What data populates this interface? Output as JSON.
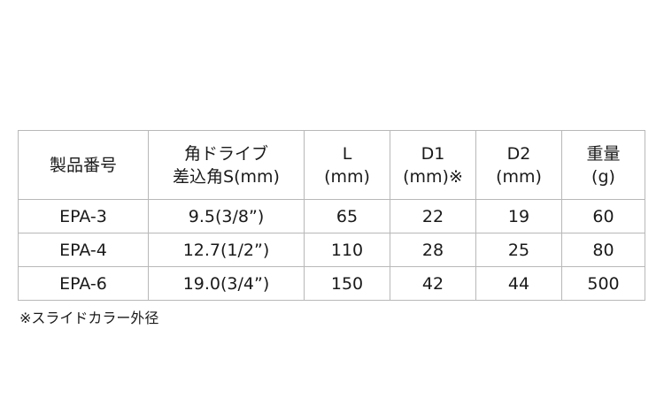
{
  "table": {
    "headers": [
      [
        "製品番号"
      ],
      [
        "角ドライブ",
        "差込角S(mm)"
      ],
      [
        "L",
        "(mm)"
      ],
      [
        "D1",
        "(mm)※"
      ],
      [
        "D2",
        "(mm)"
      ],
      [
        "重量",
        "(g)"
      ]
    ],
    "rows": [
      [
        "EPA-3",
        "9.5(3/8”)",
        "65",
        "22",
        "19",
        "60"
      ],
      [
        "EPA-4",
        "12.7(1/2”)",
        "110",
        "28",
        "25",
        "80"
      ],
      [
        "EPA-6",
        "19.0(3/4”)",
        "150",
        "42",
        "44",
        "500"
      ]
    ]
  },
  "footnote": "※スライドカラー外径"
}
